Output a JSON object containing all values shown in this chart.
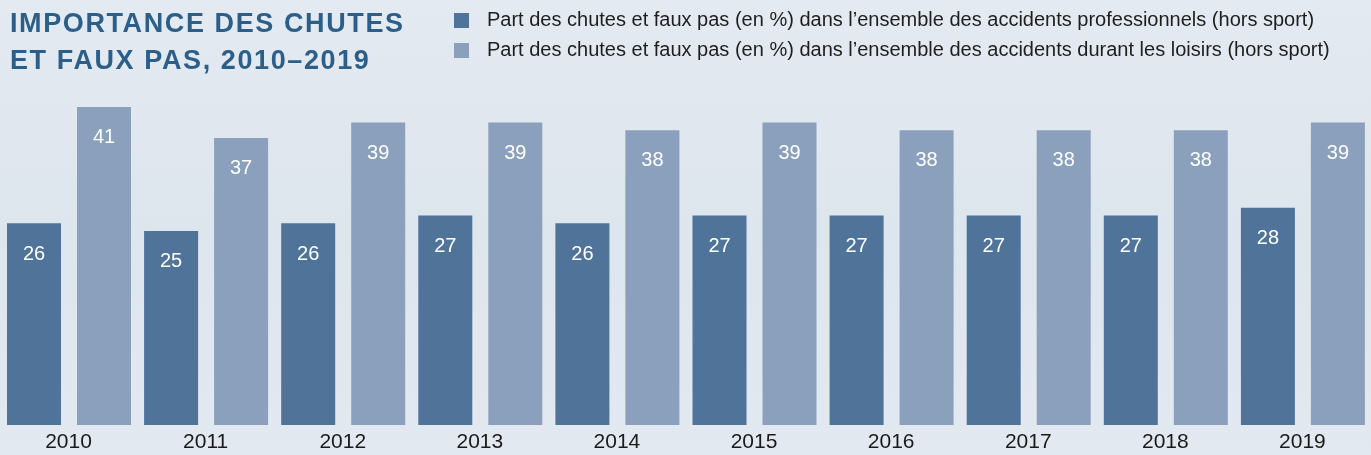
{
  "chart_data": {
    "type": "bar",
    "title": "IMPORTANCE DES CHUTES ET FAUX PAS, 2010–2019",
    "categories": [
      "2010",
      "2011",
      "2012",
      "2013",
      "2014",
      "2015",
      "2016",
      "2017",
      "2018",
      "2019"
    ],
    "series": [
      {
        "name": "Part des chutes et faux pas (en %) dans l’ensemble des accidents professionnels (hors sport)",
        "color": "#4f7399",
        "values": [
          26,
          25,
          26,
          27,
          26,
          27,
          27,
          27,
          27,
          28
        ]
      },
      {
        "name": "Part des chutes et faux pas (en %) dans l’ensemble des accidents durant les loisirs (hors sport)",
        "color": "#8aa0bd",
        "values": [
          41,
          37,
          39,
          39,
          38,
          39,
          38,
          38,
          38,
          39
        ]
      }
    ],
    "data_labels": true,
    "legend": "top",
    "tick_labels": "x"
  }
}
